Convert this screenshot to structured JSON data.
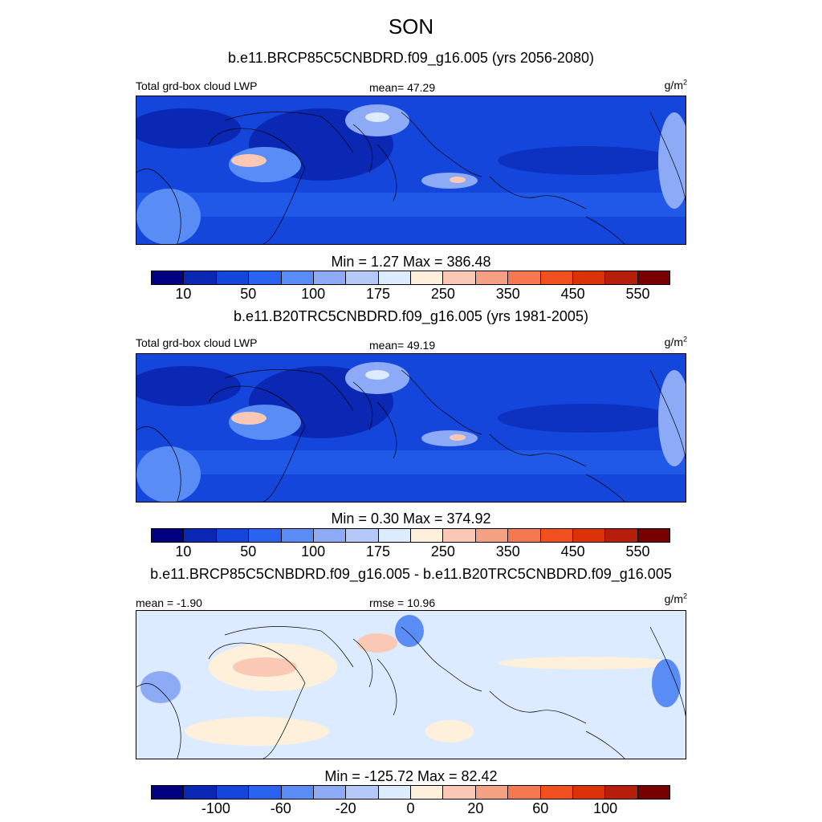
{
  "title": "SON",
  "units": {
    "base": "g/m",
    "exponent": "2"
  },
  "panels": [
    {
      "subtitle": "b.e11.BRCP85C5CNBDRD.f09_g16.005 (yrs 2056-2080)",
      "left_label": "Total grd-box cloud LWP",
      "center_label": "mean=  47.29",
      "minmax": "Min =    1.27 Max = 386.48",
      "ticks": [
        "10",
        "50",
        "100",
        "175",
        "250",
        "350",
        "450",
        "550"
      ],
      "colors": [
        "#000080",
        "#0A28B4",
        "#1446DC",
        "#2864F0",
        "#5A8CF5",
        "#8CAAF5",
        "#B4C8FA",
        "#DCEBFF",
        "#FFF0DC",
        "#FAC8B4",
        "#F5A082",
        "#F57850",
        "#F0501E",
        "#DC320A",
        "#B41E0A",
        "#780000"
      ],
      "style": "field"
    },
    {
      "subtitle": "b.e11.B20TRC5CNBDRD.f09_g16.005 (yrs 1981-2005)",
      "left_label": "Total grd-box cloud LWP",
      "center_label": "mean=  49.19",
      "minmax": "Min =    0.30 Max = 374.92",
      "ticks": [
        "10",
        "50",
        "100",
        "175",
        "250",
        "350",
        "450",
        "550"
      ],
      "colors": [
        "#000080",
        "#0A28B4",
        "#1446DC",
        "#2864F0",
        "#5A8CF5",
        "#8CAAF5",
        "#B4C8FA",
        "#DCEBFF",
        "#FFF0DC",
        "#FAC8B4",
        "#F5A082",
        "#F57850",
        "#F0501E",
        "#DC320A",
        "#B41E0A",
        "#780000"
      ],
      "style": "field"
    },
    {
      "subtitle": "b.e11.BRCP85C5CNBDRD.f09_g16.005 - b.e11.B20TRC5CNBDRD.f09_g16.005",
      "left_label": "mean =  -1.90",
      "center_label": "rmse =  10.96",
      "minmax": "Min = -125.72 Max =  82.42",
      "ticks": [
        "-100",
        "-60",
        "-20",
        "0",
        "20",
        "60",
        "100"
      ],
      "colors": [
        "#000080",
        "#0A28B4",
        "#1446DC",
        "#2864F0",
        "#5A8CF5",
        "#8CAAF5",
        "#B4C8FA",
        "#DCEBFF",
        "#FFF0DC",
        "#FAC8B4",
        "#F5A082",
        "#F57850",
        "#F0501E",
        "#DC320A",
        "#B41E0A",
        "#780000"
      ],
      "style": "diff"
    }
  ]
}
